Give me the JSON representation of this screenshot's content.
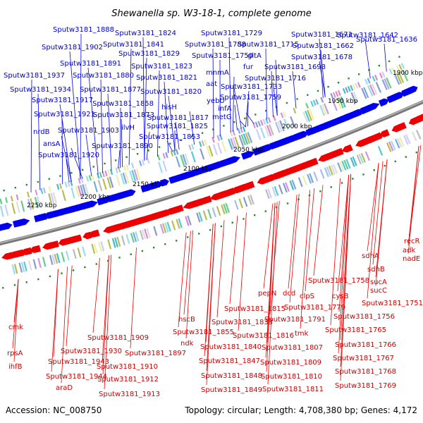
{
  "title": "Shewanella sp. W3-18-1, complete genome",
  "footer": {
    "accession": "Accession: NC_008750",
    "summary": "Topology: circular; Length: 4,708,380 bp; Genes: 4,172"
  },
  "colors": {
    "forward_strand": "#0000ee",
    "reverse_strand": "#ee0000",
    "backbone": "#888888",
    "tick": "#2a8a2a"
  },
  "ticks": [
    "1900 kbp",
    "1950 kbp",
    "2000 kbp",
    "2050 kbp",
    "2100 kbp",
    "2150 kbp",
    "2200 kbp",
    "2250 kbp"
  ],
  "blue_labels": [
    "Sputw3181_1888",
    "Sputw3181_1824",
    "Sputw3181_1729",
    "Sputw3181_1636",
    "Sputw3181_1902",
    "Sputw3181_1841",
    "Sputw3181_1788",
    "Sputw3181_1715",
    "Sputw3181_1671",
    "Sputw3181_1642",
    "Sputw3181_1829",
    "Sputw3181_1750",
    "gltA",
    "Sputw3181_1662",
    "Sputw3181_1891",
    "Sputw3181_1823",
    "mnmA",
    "fur",
    "Sputw3181_1698",
    "Sputw3181_1678",
    "Sputw3181_1937",
    "Sputw3181_1880",
    "Sputw3181_1821",
    "Sputw3181_1716",
    "aat",
    "Sputw3181_1733",
    "Sputw3181_1934",
    "Sputw3181_1877",
    "Sputw3181_1820",
    "Sputw3181_1917",
    "Sputw3181_1858",
    "Sputw3181_1759",
    "yebU",
    "hisH",
    "infA",
    "Sputw3181_1921",
    "Sputw3181_1873",
    "Sputw3181_1817",
    "metG",
    "nrdB",
    "ilvH",
    "Sputw3181_1825",
    "Sputw3181_1903",
    "Sputw3181_1853",
    "ansA",
    "Sputw3181_1890",
    "Sputw3181_1920"
  ],
  "red_labels": [
    "recR",
    "adk",
    "nadE",
    "sdhA",
    "sdhB",
    "Sputw3181_1758",
    "sucA",
    "sucC",
    "pepN",
    "dcd",
    "clpS",
    "cysB",
    "Sputw3181_1751",
    "Sputw3181_1815",
    "Sputw3181_1779",
    "Sputw3181_1756",
    "hscB",
    "Sputw3181_1833",
    "Sputw3181_1791",
    "Sputw3181_1765",
    "Sputw3181_1855",
    "Sputw3181_1816",
    "tmk",
    "cmk",
    "Sputw3181_1909",
    "ndk",
    "rpsA",
    "Sputw3181_1930",
    "Sputw3181_1897",
    "Sputw3181_1840",
    "Sputw3181_1807",
    "Sputw3181_1766",
    "ihfB",
    "Sputw3181_1943",
    "Sputw3181_1910",
    "Sputw3181_1847",
    "Sputw3181_1809",
    "Sputw3181_1767",
    "Sputw3181_1944",
    "Sputw3181_1912",
    "Sputw3181_1848",
    "Sputw3181_1810",
    "Sputw3181_1768",
    "araD",
    "Sputw3181_1913",
    "Sputw3181_1849",
    "Sputw3181_1811",
    "Sputw3181_1769"
  ]
}
